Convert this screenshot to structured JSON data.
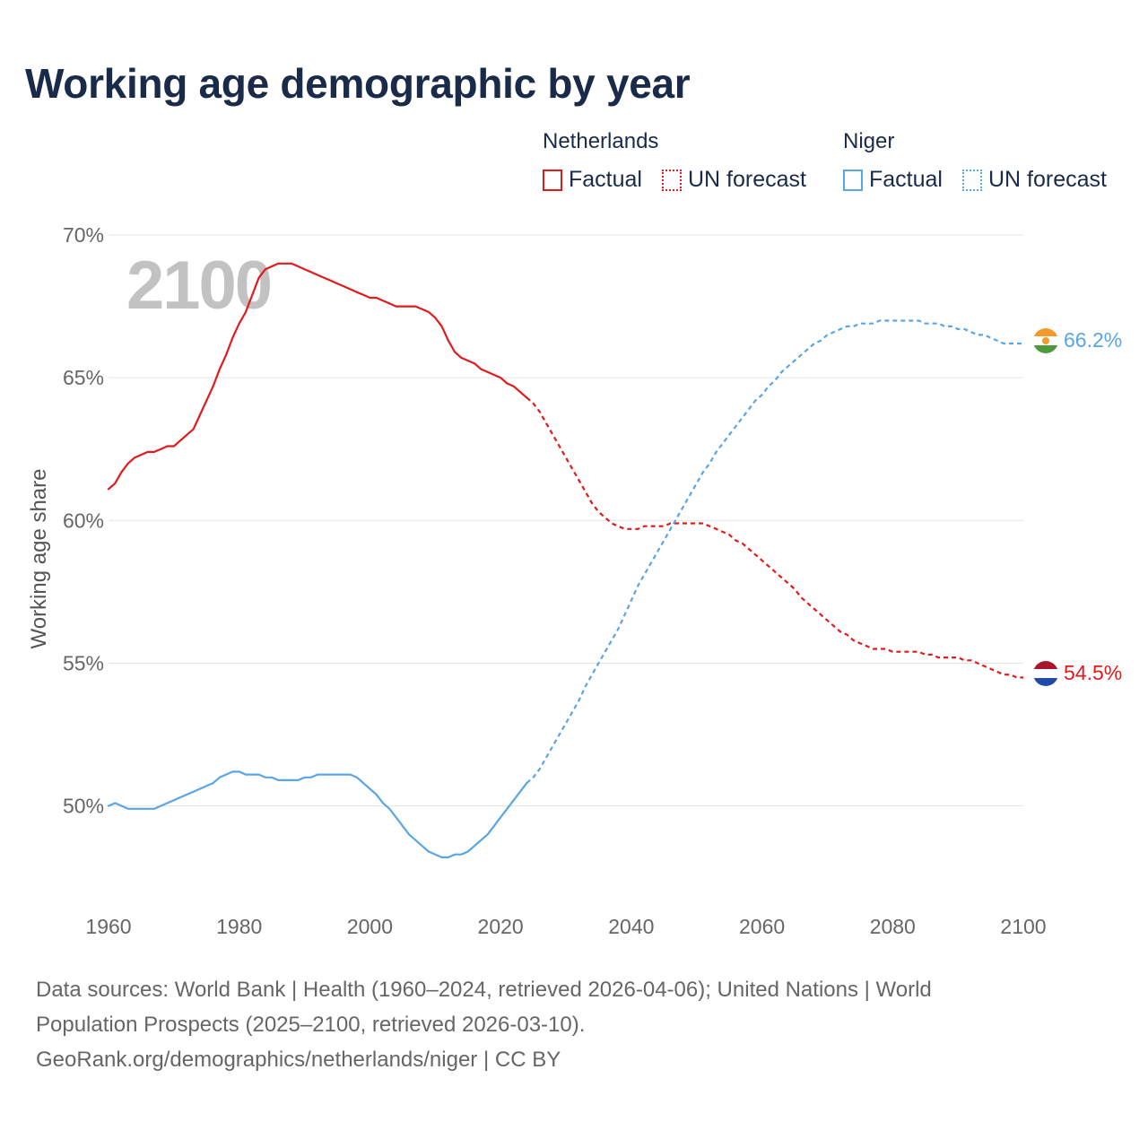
{
  "title": "Working age demographic by year",
  "legend": {
    "groups": [
      {
        "name": "Netherlands",
        "factual_label": "Factual",
        "forecast_label": "UN forecast",
        "color": "#e31a1c"
      },
      {
        "name": "Niger",
        "factual_label": "Factual",
        "forecast_label": "UN forecast",
        "color": "#5aa5e6"
      }
    ]
  },
  "year_watermark": "2100",
  "end_labels": {
    "niger": "66.2%",
    "netherlands": "54.5%"
  },
  "footer": {
    "line1": "Data sources: World Bank | Health (1960–2024, retrieved 2026-04-06); United Nations | World",
    "line2": "Population Prospects (2025–2100, retrieved 2026-03-10).",
    "line3": "GeoRank.org/demographics/netherlands/niger | CC BY"
  },
  "chart_data": {
    "type": "line",
    "title": "Working age demographic by year",
    "xlabel": "",
    "ylabel": "Working age share",
    "xlim": [
      1960,
      2100
    ],
    "ylim": [
      46.5,
      70
    ],
    "x_ticks": [
      1960,
      1980,
      2000,
      2020,
      2040,
      2060,
      2080,
      2100
    ],
    "y_ticks": [
      50,
      55,
      60,
      65,
      70
    ],
    "y_tick_labels": [
      "50%",
      "55%",
      "60%",
      "65%",
      "70%"
    ],
    "x_tick_labels": [
      "1960",
      "1980",
      "2000",
      "2020",
      "2040",
      "2060",
      "2080",
      "2100"
    ],
    "grid": true,
    "series": [
      {
        "name": "Netherlands",
        "segment": "Factual",
        "color": "#e31a1c",
        "dashed": false,
        "x": [
          1960,
          1961,
          1962,
          1963,
          1964,
          1965,
          1966,
          1967,
          1968,
          1969,
          1970,
          1971,
          1972,
          1973,
          1974,
          1975,
          1976,
          1977,
          1978,
          1979,
          1980,
          1981,
          1982,
          1983,
          1984,
          1985,
          1986,
          1987,
          1988,
          1989,
          1990,
          1991,
          1992,
          1993,
          1994,
          1995,
          1996,
          1997,
          1998,
          1999,
          2000,
          2001,
          2002,
          2003,
          2004,
          2005,
          2006,
          2007,
          2008,
          2009,
          2010,
          2011,
          2012,
          2013,
          2014,
          2015,
          2016,
          2017,
          2018,
          2019,
          2020,
          2021,
          2022,
          2023,
          2024
        ],
        "y": [
          61.1,
          61.3,
          61.7,
          62.0,
          62.2,
          62.3,
          62.4,
          62.4,
          62.5,
          62.6,
          62.6,
          62.8,
          63.0,
          63.2,
          63.7,
          64.2,
          64.7,
          65.3,
          65.8,
          66.4,
          66.9,
          67.3,
          67.9,
          68.5,
          68.8,
          68.9,
          69.0,
          69.0,
          69.0,
          68.9,
          68.8,
          68.7,
          68.6,
          68.5,
          68.4,
          68.3,
          68.2,
          68.1,
          68.0,
          67.9,
          67.8,
          67.8,
          67.7,
          67.6,
          67.5,
          67.5,
          67.5,
          67.5,
          67.4,
          67.3,
          67.1,
          66.8,
          66.3,
          65.9,
          65.7,
          65.6,
          65.5,
          65.3,
          65.2,
          65.1,
          65.0,
          64.8,
          64.7,
          64.5,
          64.3
        ]
      },
      {
        "name": "Netherlands",
        "segment": "UN forecast",
        "color": "#e31a1c",
        "dashed": true,
        "x": [
          2024,
          2025,
          2026,
          2027,
          2028,
          2029,
          2030,
          2031,
          2032,
          2033,
          2034,
          2035,
          2036,
          2037,
          2038,
          2039,
          2040,
          2041,
          2042,
          2043,
          2044,
          2045,
          2046,
          2047,
          2048,
          2049,
          2050,
          2051,
          2052,
          2053,
          2054,
          2055,
          2056,
          2057,
          2058,
          2059,
          2060,
          2061,
          2062,
          2063,
          2064,
          2065,
          2066,
          2067,
          2068,
          2069,
          2070,
          2071,
          2072,
          2073,
          2074,
          2075,
          2076,
          2077,
          2078,
          2079,
          2080,
          2081,
          2082,
          2083,
          2084,
          2085,
          2086,
          2087,
          2088,
          2089,
          2090,
          2091,
          2092,
          2093,
          2094,
          2095,
          2096,
          2097,
          2098,
          2099,
          2100
        ],
        "y": [
          64.3,
          64.1,
          63.8,
          63.4,
          63.0,
          62.6,
          62.2,
          61.8,
          61.4,
          61.0,
          60.6,
          60.3,
          60.1,
          59.9,
          59.8,
          59.7,
          59.7,
          59.7,
          59.8,
          59.8,
          59.8,
          59.8,
          59.9,
          59.9,
          59.9,
          59.9,
          59.9,
          59.9,
          59.8,
          59.7,
          59.6,
          59.5,
          59.3,
          59.2,
          59.0,
          58.8,
          58.6,
          58.4,
          58.2,
          58.0,
          57.8,
          57.6,
          57.3,
          57.1,
          56.9,
          56.7,
          56.5,
          56.3,
          56.1,
          56.0,
          55.8,
          55.7,
          55.6,
          55.5,
          55.5,
          55.5,
          55.4,
          55.4,
          55.4,
          55.4,
          55.4,
          55.3,
          55.3,
          55.2,
          55.2,
          55.2,
          55.2,
          55.1,
          55.1,
          55.0,
          54.9,
          54.8,
          54.7,
          54.6,
          54.6,
          54.5,
          54.5
        ]
      },
      {
        "name": "Niger",
        "segment": "Factual",
        "color": "#5aa5e6",
        "dashed": false,
        "x": [
          1960,
          1961,
          1962,
          1963,
          1964,
          1965,
          1966,
          1967,
          1968,
          1969,
          1970,
          1971,
          1972,
          1973,
          1974,
          1975,
          1976,
          1977,
          1978,
          1979,
          1980,
          1981,
          1982,
          1983,
          1984,
          1985,
          1986,
          1987,
          1988,
          1989,
          1990,
          1991,
          1992,
          1993,
          1994,
          1995,
          1996,
          1997,
          1998,
          1999,
          2000,
          2001,
          2002,
          2003,
          2004,
          2005,
          2006,
          2007,
          2008,
          2009,
          2010,
          2011,
          2012,
          2013,
          2014,
          2015,
          2016,
          2017,
          2018,
          2019,
          2020,
          2021,
          2022,
          2023,
          2024
        ],
        "y": [
          50.0,
          50.1,
          50.0,
          49.9,
          49.9,
          49.9,
          49.9,
          49.9,
          50.0,
          50.1,
          50.2,
          50.3,
          50.4,
          50.5,
          50.6,
          50.7,
          50.8,
          51.0,
          51.1,
          51.2,
          51.2,
          51.1,
          51.1,
          51.1,
          51.0,
          51.0,
          50.9,
          50.9,
          50.9,
          50.9,
          51.0,
          51.0,
          51.1,
          51.1,
          51.1,
          51.1,
          51.1,
          51.1,
          51.0,
          50.8,
          50.6,
          50.4,
          50.1,
          49.9,
          49.6,
          49.3,
          49.0,
          48.8,
          48.6,
          48.4,
          48.3,
          48.2,
          48.2,
          48.3,
          48.3,
          48.4,
          48.6,
          48.8,
          49.0,
          49.3,
          49.6,
          49.9,
          50.2,
          50.5,
          50.8
        ]
      },
      {
        "name": "Niger",
        "segment": "UN forecast",
        "color": "#5aa5e6",
        "dashed": true,
        "x": [
          2024,
          2025,
          2026,
          2027,
          2028,
          2029,
          2030,
          2031,
          2032,
          2033,
          2034,
          2035,
          2036,
          2037,
          2038,
          2039,
          2040,
          2041,
          2042,
          2043,
          2044,
          2045,
          2046,
          2047,
          2048,
          2049,
          2050,
          2051,
          2052,
          2053,
          2054,
          2055,
          2056,
          2057,
          2058,
          2059,
          2060,
          2061,
          2062,
          2063,
          2064,
          2065,
          2066,
          2067,
          2068,
          2069,
          2070,
          2071,
          2072,
          2073,
          2074,
          2075,
          2076,
          2077,
          2078,
          2079,
          2080,
          2081,
          2082,
          2083,
          2084,
          2085,
          2086,
          2087,
          2088,
          2089,
          2090,
          2091,
          2092,
          2093,
          2094,
          2095,
          2096,
          2097,
          2098,
          2099,
          2100
        ],
        "y": [
          50.8,
          51.0,
          51.3,
          51.7,
          52.1,
          52.5,
          52.9,
          53.3,
          53.7,
          54.2,
          54.6,
          55.0,
          55.4,
          55.8,
          56.2,
          56.7,
          57.2,
          57.7,
          58.1,
          58.5,
          58.9,
          59.3,
          59.7,
          60.1,
          60.5,
          60.9,
          61.3,
          61.7,
          62.0,
          62.4,
          62.7,
          63.0,
          63.3,
          63.6,
          63.9,
          64.2,
          64.4,
          64.7,
          64.9,
          65.2,
          65.4,
          65.6,
          65.8,
          66.0,
          66.2,
          66.3,
          66.5,
          66.6,
          66.7,
          66.8,
          66.8,
          66.9,
          66.9,
          66.9,
          67.0,
          67.0,
          67.0,
          67.0,
          67.0,
          67.0,
          67.0,
          66.9,
          66.9,
          66.9,
          66.8,
          66.8,
          66.7,
          66.7,
          66.6,
          66.5,
          66.5,
          66.4,
          66.3,
          66.2,
          66.2,
          66.2,
          66.2
        ]
      }
    ]
  }
}
